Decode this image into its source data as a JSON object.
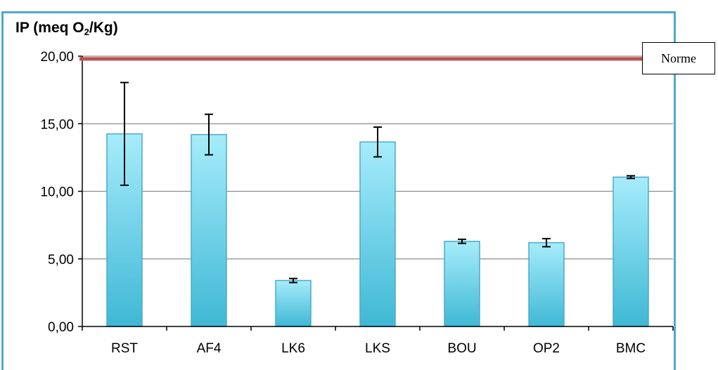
{
  "chart_data": {
    "type": "bar",
    "ylabel_main": "IP (meq O",
    "ylabel_sub": "2",
    "ylabel_end": "/Kg)",
    "categories": [
      "RST",
      "AF4",
      "LK6",
      "LKS",
      "BOU",
      "OP2",
      "BMC"
    ],
    "values": [
      14.25,
      14.2,
      3.4,
      13.65,
      6.3,
      6.2,
      11.05
    ],
    "errors": [
      3.8,
      1.5,
      0.15,
      1.1,
      0.15,
      0.3,
      0.1
    ],
    "ylim": [
      0,
      20
    ],
    "yticks": [
      "0,00",
      "5,00",
      "10,00",
      "15,00",
      "20,00"
    ],
    "ytick_values": [
      0,
      5,
      10,
      15,
      20
    ],
    "reference_line": {
      "value": 19.8,
      "label": "Norme",
      "color": "#c0504d"
    },
    "grid": true,
    "bar_color_top": "#a6ecfb",
    "bar_color_bottom": "#3fb8d5",
    "bar_edge": "#4bacc6"
  }
}
